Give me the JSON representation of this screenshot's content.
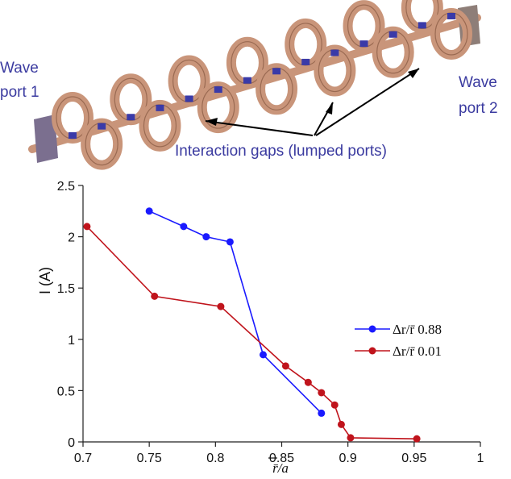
{
  "diagram": {
    "labels": {
      "port1_line1": "Wave",
      "port1_line2": "port 1",
      "port2_line1": "Wave",
      "port2_line2": "port 2",
      "gaps": "Interaction gaps (lumped ports)"
    },
    "colors": {
      "label": "#3b3ba0",
      "copper": "#c9957a",
      "copper_dark": "#9a6a52",
      "beam": "#3a3aa8"
    }
  },
  "chart_data": {
    "type": "line",
    "title": "",
    "xlabel": "r̄/a",
    "ylabel": "I (A)",
    "xlim": [
      0.7,
      1.0
    ],
    "ylim": [
      0,
      2.5
    ],
    "xticks": [
      "0.7",
      "0.75",
      "0.8",
      "0.85",
      "0.9",
      "0.95",
      "1"
    ],
    "yticks": [
      "0",
      "0.5",
      "1",
      "1.5",
      "2",
      "2.5"
    ],
    "grid": false,
    "legend_position": "right",
    "series": [
      {
        "name": "Δr/r̄  0.88",
        "color": "#1a1aff",
        "x": [
          0.75,
          0.776,
          0.793,
          0.811,
          0.836,
          0.88
        ],
        "y": [
          2.25,
          2.1,
          2.0,
          1.95,
          0.85,
          0.28
        ]
      },
      {
        "name": "Δr/r̄  0.01",
        "color": "#c0141c",
        "x": [
          0.703,
          0.754,
          0.804,
          0.853,
          0.87,
          0.88,
          0.89,
          0.895,
          0.902,
          0.952
        ],
        "y": [
          2.1,
          1.42,
          1.32,
          0.74,
          0.58,
          0.48,
          0.36,
          0.17,
          0.04,
          0.03
        ]
      }
    ]
  }
}
